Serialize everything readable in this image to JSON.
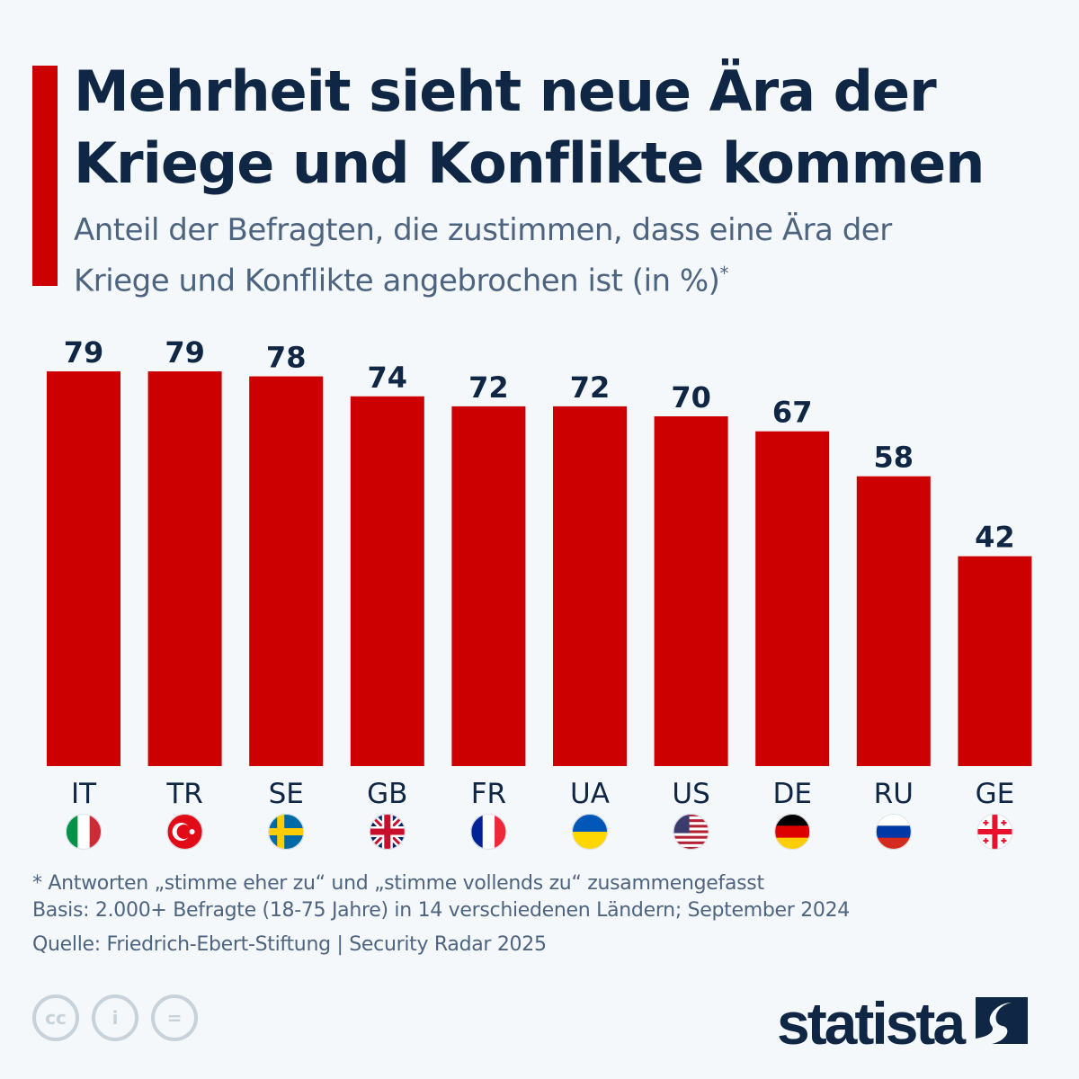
{
  "header": {
    "title": "Mehrheit sieht neue Ära der Kriege und Konflikte kommen",
    "subtitle": "Anteil der Befragten, die zustimmen, dass eine Ära der Kriege und Konflikte angebrochen ist (in %)",
    "subtitle_mark": "*"
  },
  "chart_data": {
    "type": "bar",
    "title": "Mehrheit sieht neue Ära der Kriege und Konflikte kommen",
    "ylabel": "",
    "categories": [
      "IT",
      "TR",
      "SE",
      "GB",
      "FR",
      "UA",
      "US",
      "DE",
      "RU",
      "GE"
    ],
    "values": [
      79,
      79,
      78,
      74,
      72,
      72,
      70,
      67,
      58,
      42
    ],
    "ylim": [
      0,
      79
    ],
    "grid": false,
    "bar_color": "#cc0000",
    "flags": [
      "italy-flag",
      "turkey-flag",
      "sweden-flag",
      "uk-flag",
      "france-flag",
      "ukraine-flag",
      "usa-flag",
      "germany-flag",
      "russia-flag",
      "georgia-flag"
    ]
  },
  "footer": {
    "note": "* Antworten „stimme eher zu“ und „stimme vollends zu“ zusammengefasst",
    "basis": "Basis: 2.000+ Befragte (18-75 Jahre) in 14 verschiedenen Ländern; September 2024",
    "source": "Quelle: Friedrich-Ebert-Stiftung | Security Radar 2025",
    "cc_icons": [
      "cc-icon",
      "attribution-icon",
      "no-derivatives-icon"
    ],
    "cc_labels": [
      "cc",
      "i",
      "="
    ],
    "logo": "statista"
  },
  "colors": {
    "accent": "#cc0000",
    "title": "#0f2744",
    "text": "#4d6480",
    "background": "#f5f8fb"
  }
}
